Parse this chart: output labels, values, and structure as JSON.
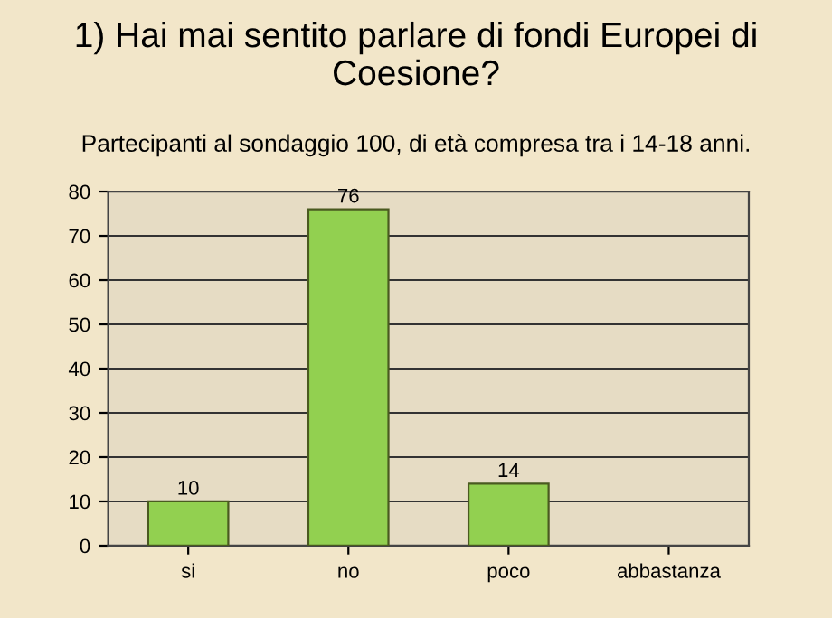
{
  "chart_data": {
    "type": "bar",
    "title": "1) Hai mai sentito parlare di fondi Europei di Coesione?",
    "subtitle": "Partecipanti al sondaggio 100, di età compresa tra i 14-18 anni.",
    "categories": [
      "si",
      "no",
      "poco",
      "abbastanza"
    ],
    "values": [
      10,
      76,
      14,
      0
    ],
    "value_labels": [
      "10",
      "76",
      "14",
      null
    ],
    "color": "#92d050",
    "ylim": [
      0,
      80
    ],
    "yticks": [
      0,
      10,
      20,
      30,
      40,
      50,
      60,
      70,
      80
    ],
    "grid": "y"
  }
}
